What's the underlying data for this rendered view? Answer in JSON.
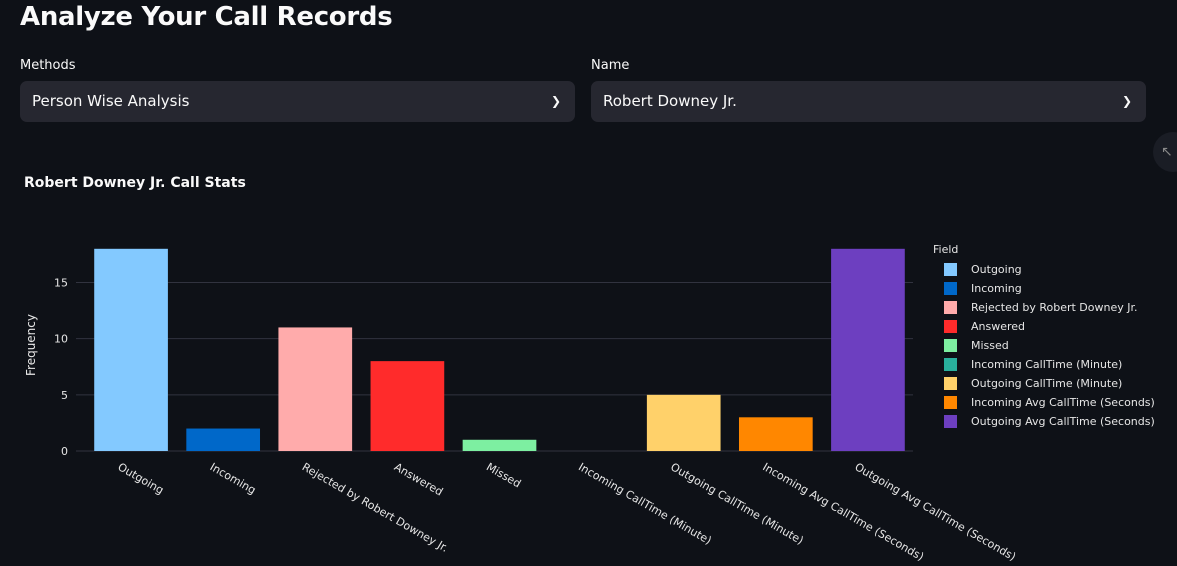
{
  "page": {
    "title": "Analyze Your Call Records"
  },
  "filters": {
    "methods": {
      "label": "Methods",
      "value": "Person Wise Analysis"
    },
    "name": {
      "label": "Name",
      "value": "Robert Downey Jr."
    }
  },
  "chart_data": {
    "type": "bar",
    "title": "Robert Downey Jr. Call Stats",
    "xlabel": "",
    "ylabel": "Frequency",
    "ylim": [
      0,
      18.5
    ],
    "yticks": [
      0,
      5,
      10,
      15
    ],
    "grid": true,
    "legend_title": "Field",
    "legend_position": "right",
    "categories": [
      "Outgoing",
      "Incoming",
      "Rejected by Robert Downey Jr.",
      "Answered",
      "Missed",
      "Incoming CallTime (Minute)",
      "Outgoing CallTime (Minute)",
      "Incoming Avg CallTime (Seconds)",
      "Outgoing Avg CallTime (Seconds)"
    ],
    "values": [
      18,
      2,
      11,
      8,
      1,
      0,
      5,
      3,
      18
    ],
    "colors": [
      "#83c9ff",
      "#0068c9",
      "#ffabab",
      "#ff2b2b",
      "#7defa1",
      "#29b09d",
      "#ffd16a",
      "#ff8700",
      "#6d3fc0"
    ]
  }
}
